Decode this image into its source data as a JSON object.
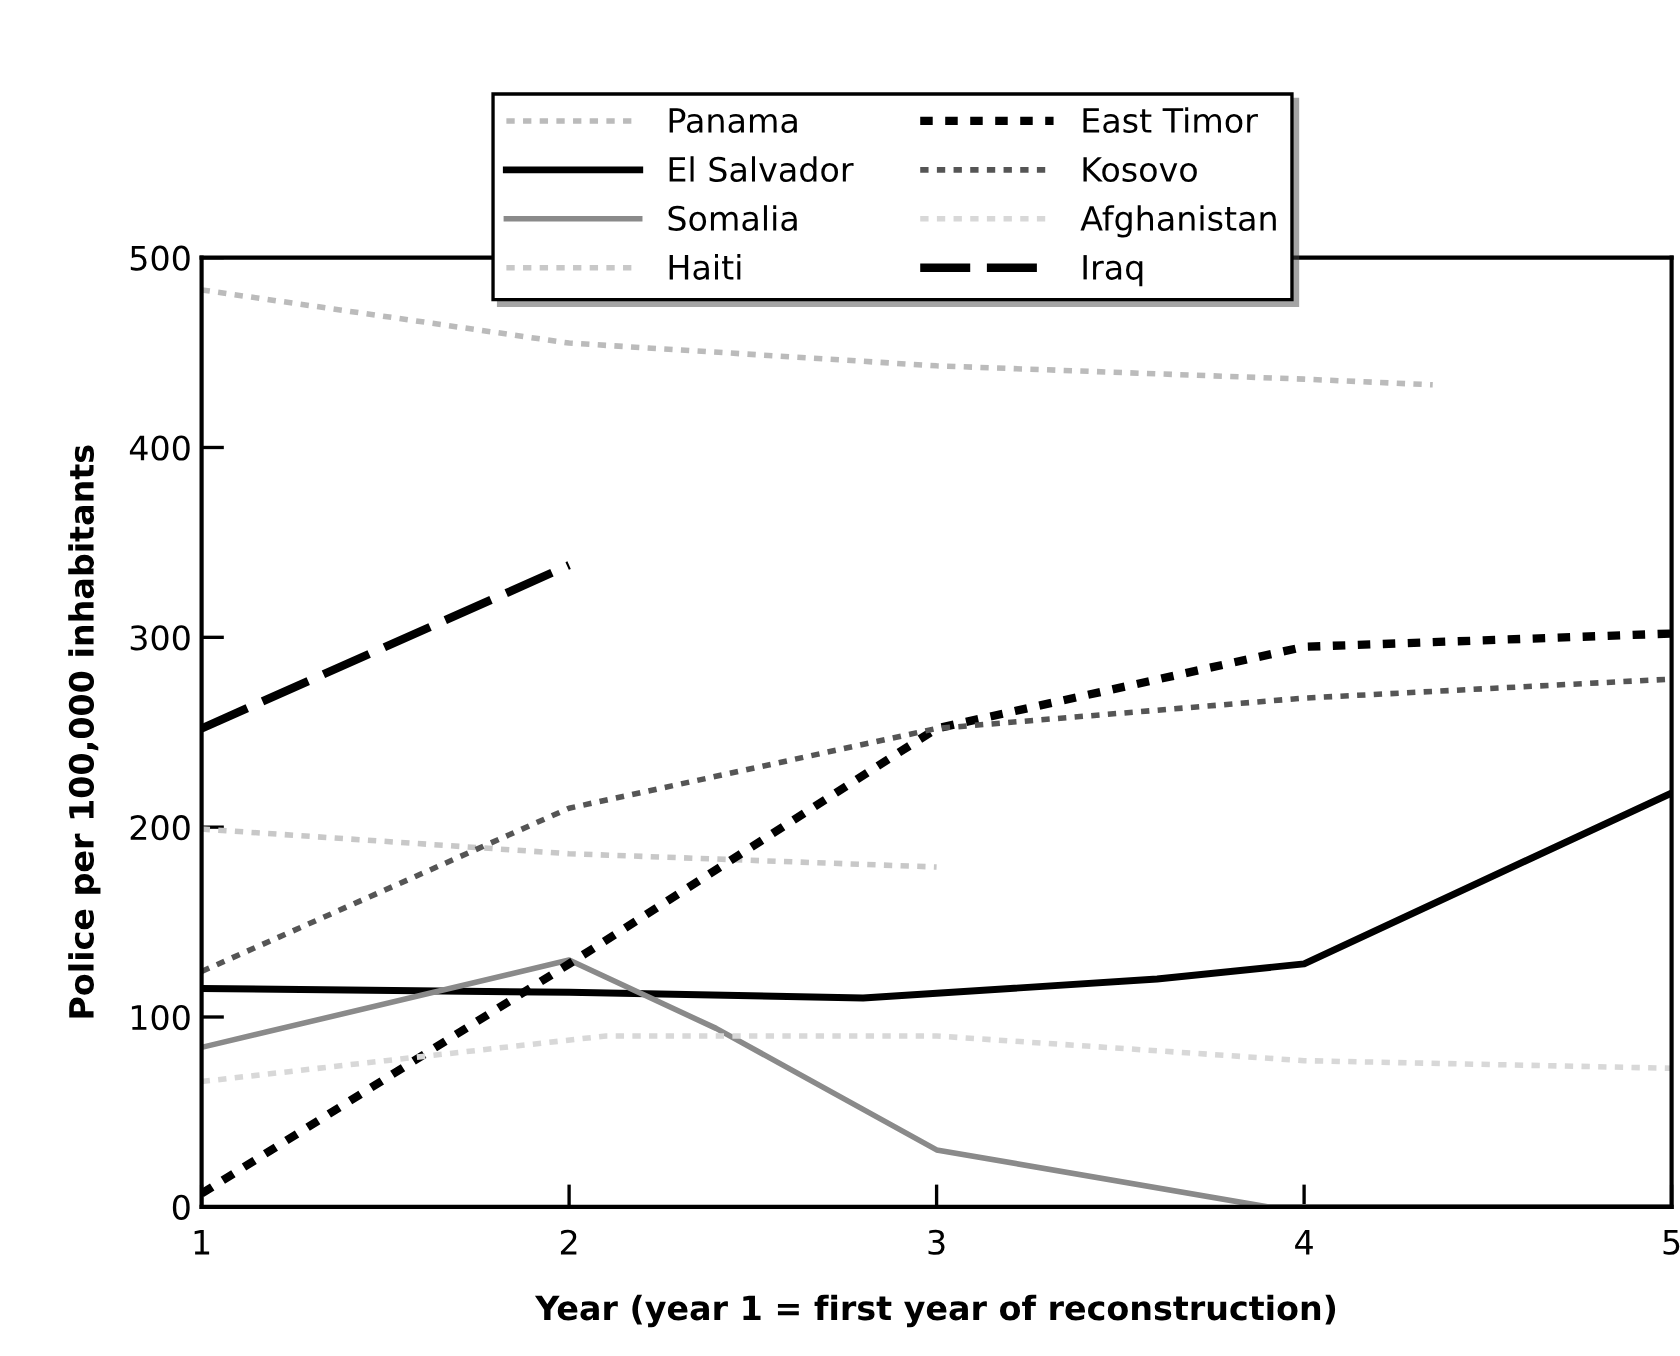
{
  "chart_data": {
    "type": "line",
    "xlabel": "Year (year 1 = first year of reconstruction)",
    "ylabel": "Police per 100,000 inhabitants",
    "xlim": [
      1,
      5
    ],
    "ylim": [
      0,
      500
    ],
    "xticks": [
      1,
      2,
      3,
      4,
      5
    ],
    "yticks": [
      0,
      100,
      200,
      300,
      400,
      500
    ],
    "grid": false,
    "legend": "top",
    "marker": "none",
    "series": [
      {
        "name": "Panama",
        "color": "#bbbbbb",
        "line_style": "dotted",
        "x": [
          1,
          2,
          3,
          4,
          4.35
        ],
        "values": [
          483,
          455,
          443,
          436,
          433
        ]
      },
      {
        "name": "El Salvador",
        "color": "#000000",
        "line_style": "solid",
        "x": [
          1,
          2,
          2.8,
          3.6,
          4,
          5
        ],
        "values": [
          115,
          113,
          110,
          120,
          128,
          218
        ]
      },
      {
        "name": "Somalia",
        "color": "#8a8a8a",
        "line_style": "solid",
        "x": [
          1,
          2,
          2.4,
          3,
          3.9,
          5
        ],
        "values": [
          84,
          130,
          94,
          30,
          0,
          0
        ]
      },
      {
        "name": "Haiti",
        "color": "#c8c8c8",
        "line_style": "dotted",
        "x": [
          1,
          2,
          3
        ],
        "values": [
          199,
          186,
          179
        ]
      },
      {
        "name": "East Timor",
        "color": "#000000",
        "line_style": "dotted",
        "x": [
          1,
          2,
          3,
          4,
          5
        ],
        "values": [
          7,
          128,
          252,
          295,
          302
        ]
      },
      {
        "name": "Kosovo",
        "color": "#555555",
        "line_style": "dotted",
        "x": [
          1,
          2,
          3,
          4,
          5
        ],
        "values": [
          124,
          210,
          252,
          268,
          278
        ]
      },
      {
        "name": "Afghanistan",
        "color": "#d8d8d8",
        "line_style": "dotted",
        "x": [
          1,
          1.5,
          2.1,
          3,
          4,
          5
        ],
        "values": [
          66,
          77,
          90,
          90,
          77,
          73
        ]
      },
      {
        "name": "Iraq",
        "color": "#000000",
        "line_style": "dashed",
        "x": [
          1,
          2
        ],
        "values": [
          252,
          338
        ]
      }
    ]
  }
}
